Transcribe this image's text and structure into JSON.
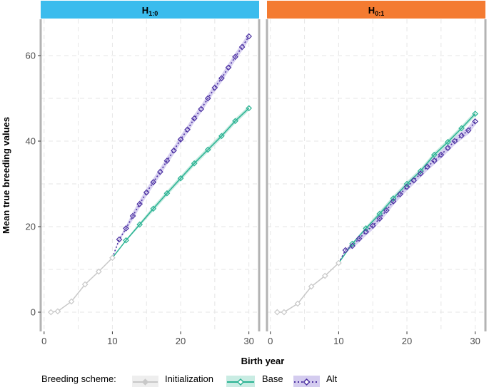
{
  "chart_data": {
    "type": "line",
    "xlabel": "Birth year",
    "ylabel": "Mean true breeding values",
    "xlim": [
      -0.5,
      31.5
    ],
    "ylim": [
      -4.5,
      68.5
    ],
    "xticks": [
      0,
      10,
      20,
      30
    ],
    "yticks": [
      0,
      20,
      40,
      60
    ],
    "legend": {
      "title": "Breeding scheme:",
      "position": "bottom",
      "entries": [
        "Initialization",
        "Base",
        "Alt"
      ]
    },
    "series_styles": {
      "Initialization": {
        "color": "#c8c8c8",
        "dash": "",
        "marker": "diamond"
      },
      "Base": {
        "color": "#2ab393",
        "dash": "",
        "marker": "diamond"
      },
      "Alt": {
        "color": "#4a2fa0",
        "dash": "2,3",
        "marker": "diamond"
      }
    },
    "facets": [
      {
        "label_main": "H",
        "label_sub": "1:0",
        "strip_color": "#3bbced",
        "series": [
          {
            "name": "Initialization",
            "x": [
              1,
              2,
              4,
              6,
              8,
              10
            ],
            "y": [
              0.0,
              0.2,
              2.5,
              6.5,
              9.5,
              12.7
            ]
          },
          {
            "name": "Base",
            "x": [
              10,
              12,
              14,
              16,
              18,
              20,
              22,
              24,
              26,
              28,
              30
            ],
            "y": [
              12.7,
              16.8,
              20.5,
              24.2,
              27.8,
              31.3,
              34.8,
              38.0,
              41.2,
              44.7,
              47.7
            ]
          },
          {
            "name": "Alt",
            "x": [
              10,
              11,
              12,
              13,
              14,
              15,
              16,
              17,
              18,
              19,
              20,
              21,
              22,
              23,
              24,
              25,
              26,
              27,
              28,
              29,
              30
            ],
            "y": [
              12.7,
              17.0,
              19.6,
              22.5,
              25.3,
              28.0,
              30.4,
              32.8,
              35.4,
              37.8,
              40.4,
              42.7,
              45.3,
              47.5,
              50.0,
              52.5,
              54.7,
              57.2,
              59.7,
              62.0,
              64.5
            ]
          }
        ]
      },
      {
        "label_main": "H",
        "label_sub": "0:1",
        "strip_color": "#f47b31",
        "series": [
          {
            "name": "Initialization",
            "x": [
              1,
              2,
              4,
              6,
              8,
              10
            ],
            "y": [
              0.0,
              0.0,
              2.0,
              6.0,
              8.5,
              11.5
            ]
          },
          {
            "name": "Base",
            "x": [
              10,
              12,
              14,
              16,
              18,
              20,
              22,
              24,
              26,
              28,
              30
            ],
            "y": [
              11.5,
              16.0,
              19.6,
              23.0,
              26.6,
              30.0,
              33.0,
              36.8,
              39.8,
              43.0,
              46.4
            ]
          },
          {
            "name": "Alt",
            "x": [
              10,
              11,
              12,
              13,
              14,
              15,
              16,
              17,
              18,
              19,
              20,
              21,
              22,
              23,
              24,
              25,
              26,
              27,
              28,
              29,
              30
            ],
            "y": [
              11.5,
              14.5,
              15.5,
              17.2,
              18.8,
              20.2,
              21.9,
              23.8,
              25.9,
              27.6,
              29.3,
              30.8,
              32.4,
              34.0,
              35.4,
              36.8,
              38.4,
              40.0,
              41.3,
              42.5,
              44.6
            ]
          }
        ]
      }
    ]
  }
}
